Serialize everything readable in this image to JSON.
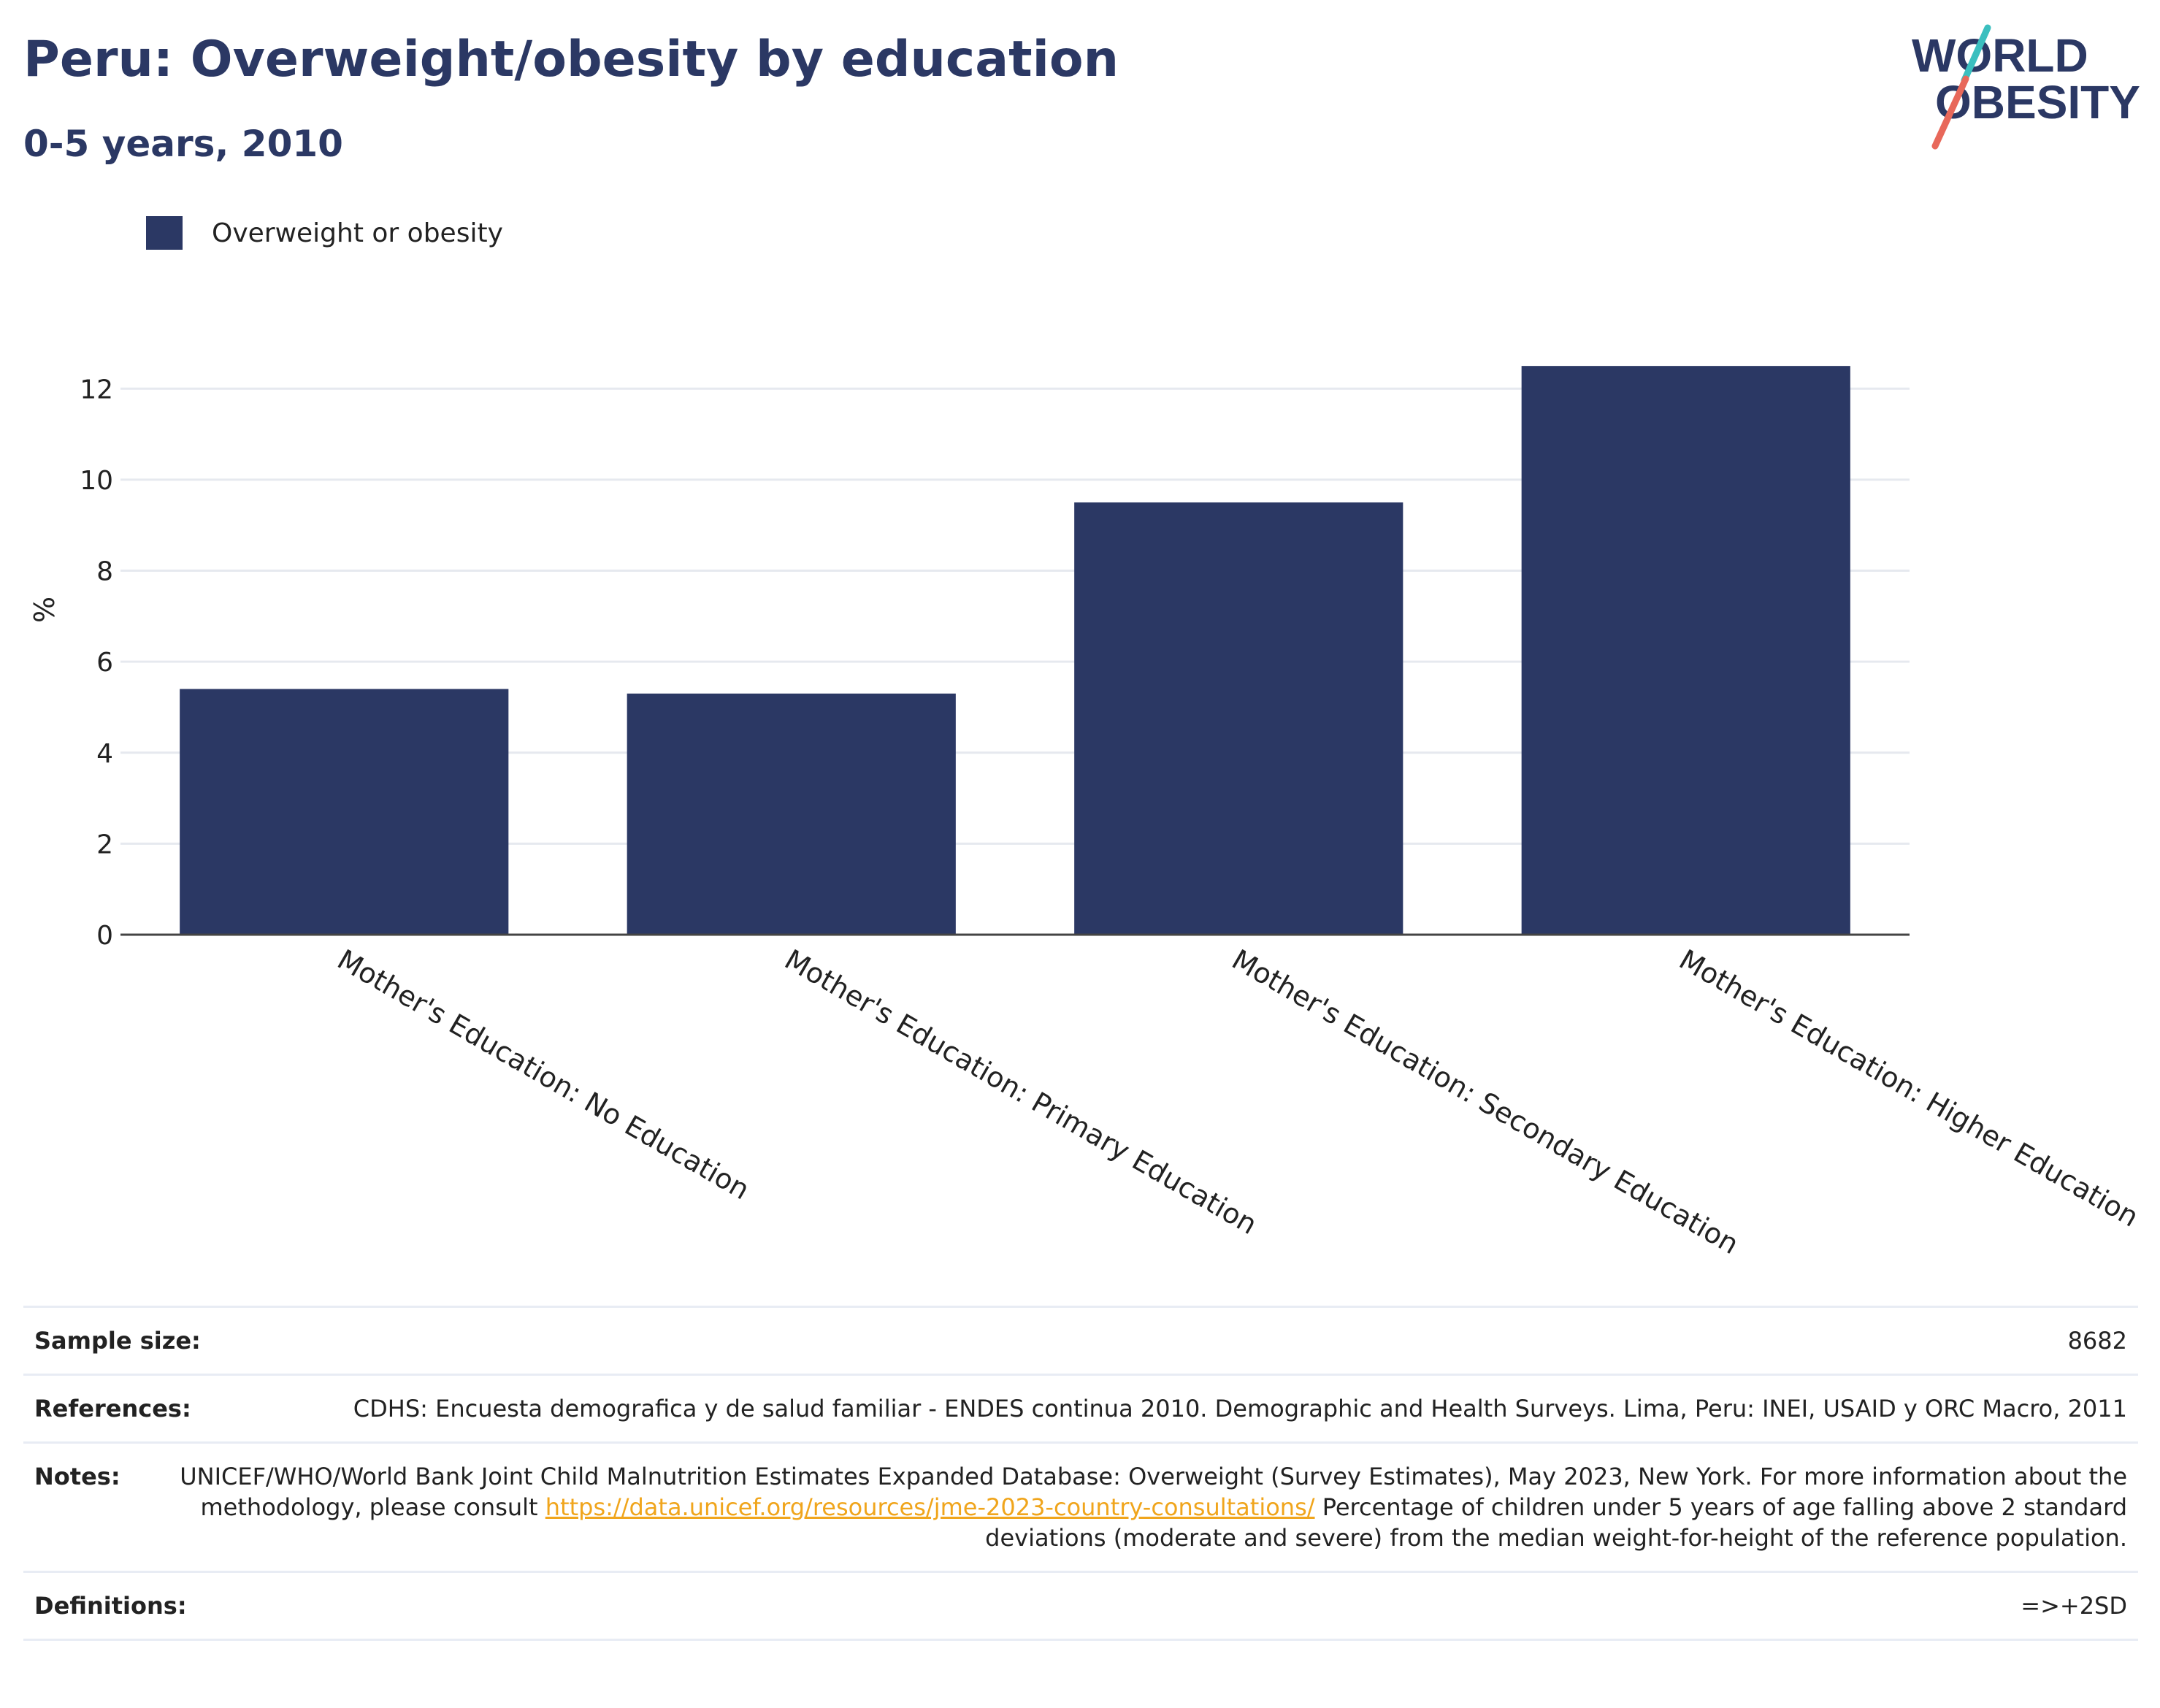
{
  "header": {
    "title": "Peru: Overweight/obesity by education",
    "subtitle": "0-5 years, 2010"
  },
  "logo": {
    "line1": "WORLD",
    "line2": "OBESITY",
    "slash_colors": [
      "#3bbfbf",
      "#e8685a"
    ]
  },
  "legend": {
    "label": "Overweight or obesity",
    "color": "#2b3864"
  },
  "chart_data": {
    "type": "bar",
    "categories": [
      "Mother's Education: No Education",
      "Mother's Education: Primary Education",
      "Mother's Education: Secondary Education",
      "Mother's Education: Higher Education"
    ],
    "series": [
      {
        "name": "Overweight or obesity",
        "values": [
          5.4,
          5.3,
          9.5,
          12.5
        ],
        "color": "#2b3864"
      }
    ],
    "xlabel": "",
    "ylabel": "%",
    "ylim": [
      0,
      13
    ],
    "yticks": [
      0,
      2,
      4,
      6,
      8,
      10,
      12
    ],
    "grid": true,
    "legend_position": "top-left"
  },
  "info": {
    "sample_size_label": "Sample size:",
    "sample_size_value": "8682",
    "references_label": "References:",
    "references_value": "CDHS: Encuesta demografica y de salud familiar - ENDES continua 2010. Demographic and Health Surveys. Lima, Peru: INEI, USAID y ORC Macro, 2011",
    "notes_label": "Notes:",
    "notes_text1": "UNICEF/WHO/World Bank Joint Child Malnutrition Estimates Expanded Database: Overweight (Survey Estimates), May 2023, New York. For more information about the methodology, please consult",
    "notes_link": "https://data.unicef.org/resources/jme-2023-country-consultations/",
    "notes_text2": "Percentage of children under 5 years of age falling above 2 standard deviations (moderate and severe) from the median weight-for-height of the reference population.",
    "definitions_label": "Definitions:",
    "definitions_value": "=>+2SD"
  }
}
